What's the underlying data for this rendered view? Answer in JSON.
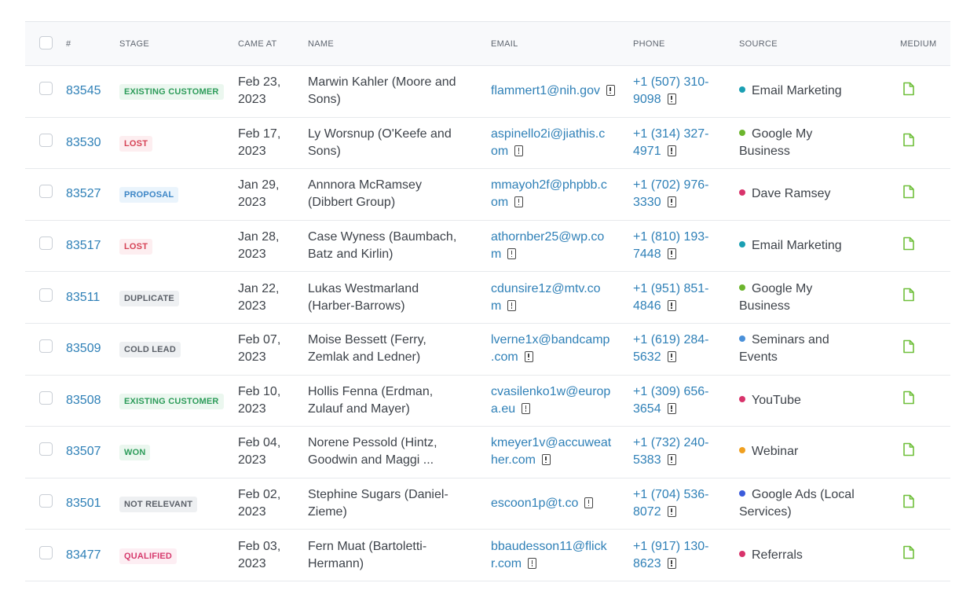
{
  "columns": {
    "num": "#",
    "stage": "STAGE",
    "came_at": "CAME AT",
    "name": "NAME",
    "email": "EMAIL",
    "phone": "PHONE",
    "source": "SOURCE",
    "medium": "MEDIUM"
  },
  "colors": {
    "link": "#2f80b7",
    "medium_icon": "#6fbf3a"
  },
  "rows": [
    {
      "id": "83545",
      "stage": "EXISTING CUSTOMER",
      "stage_class": "b-existing",
      "date1": "Feb 23,",
      "date2": "2023",
      "name1": "Marwin Kahler (Moore and",
      "name2": "Sons)",
      "email1": "flammert1@nih.gov",
      "email2": "",
      "phone1": "+1 (507) 310-",
      "phone2": "9098",
      "source1": "Email Marketing",
      "source2": "",
      "dot": "#1a9fb3"
    },
    {
      "id": "83530",
      "stage": "LOST",
      "stage_class": "b-lost",
      "date1": "Feb 17,",
      "date2": "2023",
      "name1": "Ly Worsnup (O'Keefe and",
      "name2": "Sons)",
      "email1": "aspinello2i@jiathis.c",
      "email2": "om",
      "phone1": "+1 (314) 327-",
      "phone2": "4971",
      "source1": "Google My",
      "source2": "Business",
      "dot": "#6cb52d"
    },
    {
      "id": "83527",
      "stage": "PROPOSAL",
      "stage_class": "b-proposal",
      "date1": "Jan 29,",
      "date2": "2023",
      "name1": "Annnora McRamsey",
      "name2": "(Dibbert Group)",
      "email1": "mmayoh2f@phpbb.c",
      "email2": "om",
      "phone1": "+1 (702) 976-",
      "phone2": "3330",
      "source1": "Dave Ramsey",
      "source2": "",
      "dot": "#d8336b"
    },
    {
      "id": "83517",
      "stage": "LOST",
      "stage_class": "b-lost",
      "date1": "Jan 28,",
      "date2": "2023",
      "name1": "Case Wyness (Baumbach,",
      "name2": "Batz and Kirlin)",
      "email1": "athornber25@wp.co",
      "email2": "m",
      "phone1": "+1 (810) 193-",
      "phone2": "7448",
      "source1": "Email Marketing",
      "source2": "",
      "dot": "#1a9fb3"
    },
    {
      "id": "83511",
      "stage": "DUPLICATE",
      "stage_class": "b-dup",
      "date1": "Jan 22,",
      "date2": "2023",
      "name1": "Lukas Westmarland",
      "name2": "(Harber-Barrows)",
      "email1": "cdunsire1z@mtv.co",
      "email2": "m",
      "phone1": "+1 (951) 851-",
      "phone2": "4846",
      "source1": "Google My",
      "source2": "Business",
      "dot": "#6cb52d"
    },
    {
      "id": "83509",
      "stage": "COLD LEAD",
      "stage_class": "b-dup",
      "date1": "Feb 07,",
      "date2": "2023",
      "name1": "Moise Bessett (Ferry,",
      "name2": "Zemlak and Ledner)",
      "email1": "lverne1x@bandcamp",
      "email2": ".com",
      "phone1": "+1 (619) 284-",
      "phone2": "5632",
      "source1": "Seminars and",
      "source2": "Events",
      "dot": "#4a90d9"
    },
    {
      "id": "83508",
      "stage": "EXISTING CUSTOMER",
      "stage_class": "b-existing",
      "date1": "Feb 10,",
      "date2": "2023",
      "name1": "Hollis Fenna (Erdman,",
      "name2": "Zulauf and Mayer)",
      "email1": "cvasilenko1w@europ",
      "email2": "a.eu",
      "phone1": "+1 (309) 656-",
      "phone2": "3654",
      "source1": "YouTube",
      "source2": "",
      "dot": "#d8336b"
    },
    {
      "id": "83507",
      "stage": "WON",
      "stage_class": "b-won",
      "date1": "Feb 04,",
      "date2": "2023",
      "name1": "Norene Pessold (Hintz,",
      "name2": "Goodwin and Maggi ...",
      "email1": "kmeyer1v@accuweat",
      "email2": "her.com",
      "phone1": "+1 (732) 240-",
      "phone2": "5383",
      "source1": "Webinar",
      "source2": "",
      "dot": "#f0a020"
    },
    {
      "id": "83501",
      "stage": "NOT RELEVANT",
      "stage_class": "b-dup",
      "date1": "Feb 02,",
      "date2": "2023",
      "name1": "Stephine Sugars (Daniel-",
      "name2": "Zieme)",
      "email1": "escoon1p@t.co",
      "email2": "",
      "phone1": "+1 (704) 536-",
      "phone2": "8072",
      "source1": "Google Ads (Local",
      "source2": "Services)",
      "dot": "#3b5bdb"
    },
    {
      "id": "83477",
      "stage": "QUALIFIED",
      "stage_class": "b-qual",
      "date1": "Feb 03,",
      "date2": "2023",
      "name1": "Fern Muat (Bartoletti-",
      "name2": "Hermann)",
      "email1": "bbaudesson11@flick",
      "email2": "r.com",
      "phone1": "+1 (917) 130-",
      "phone2": "8623",
      "source1": "Referrals",
      "source2": "",
      "dot": "#d8336b"
    }
  ]
}
